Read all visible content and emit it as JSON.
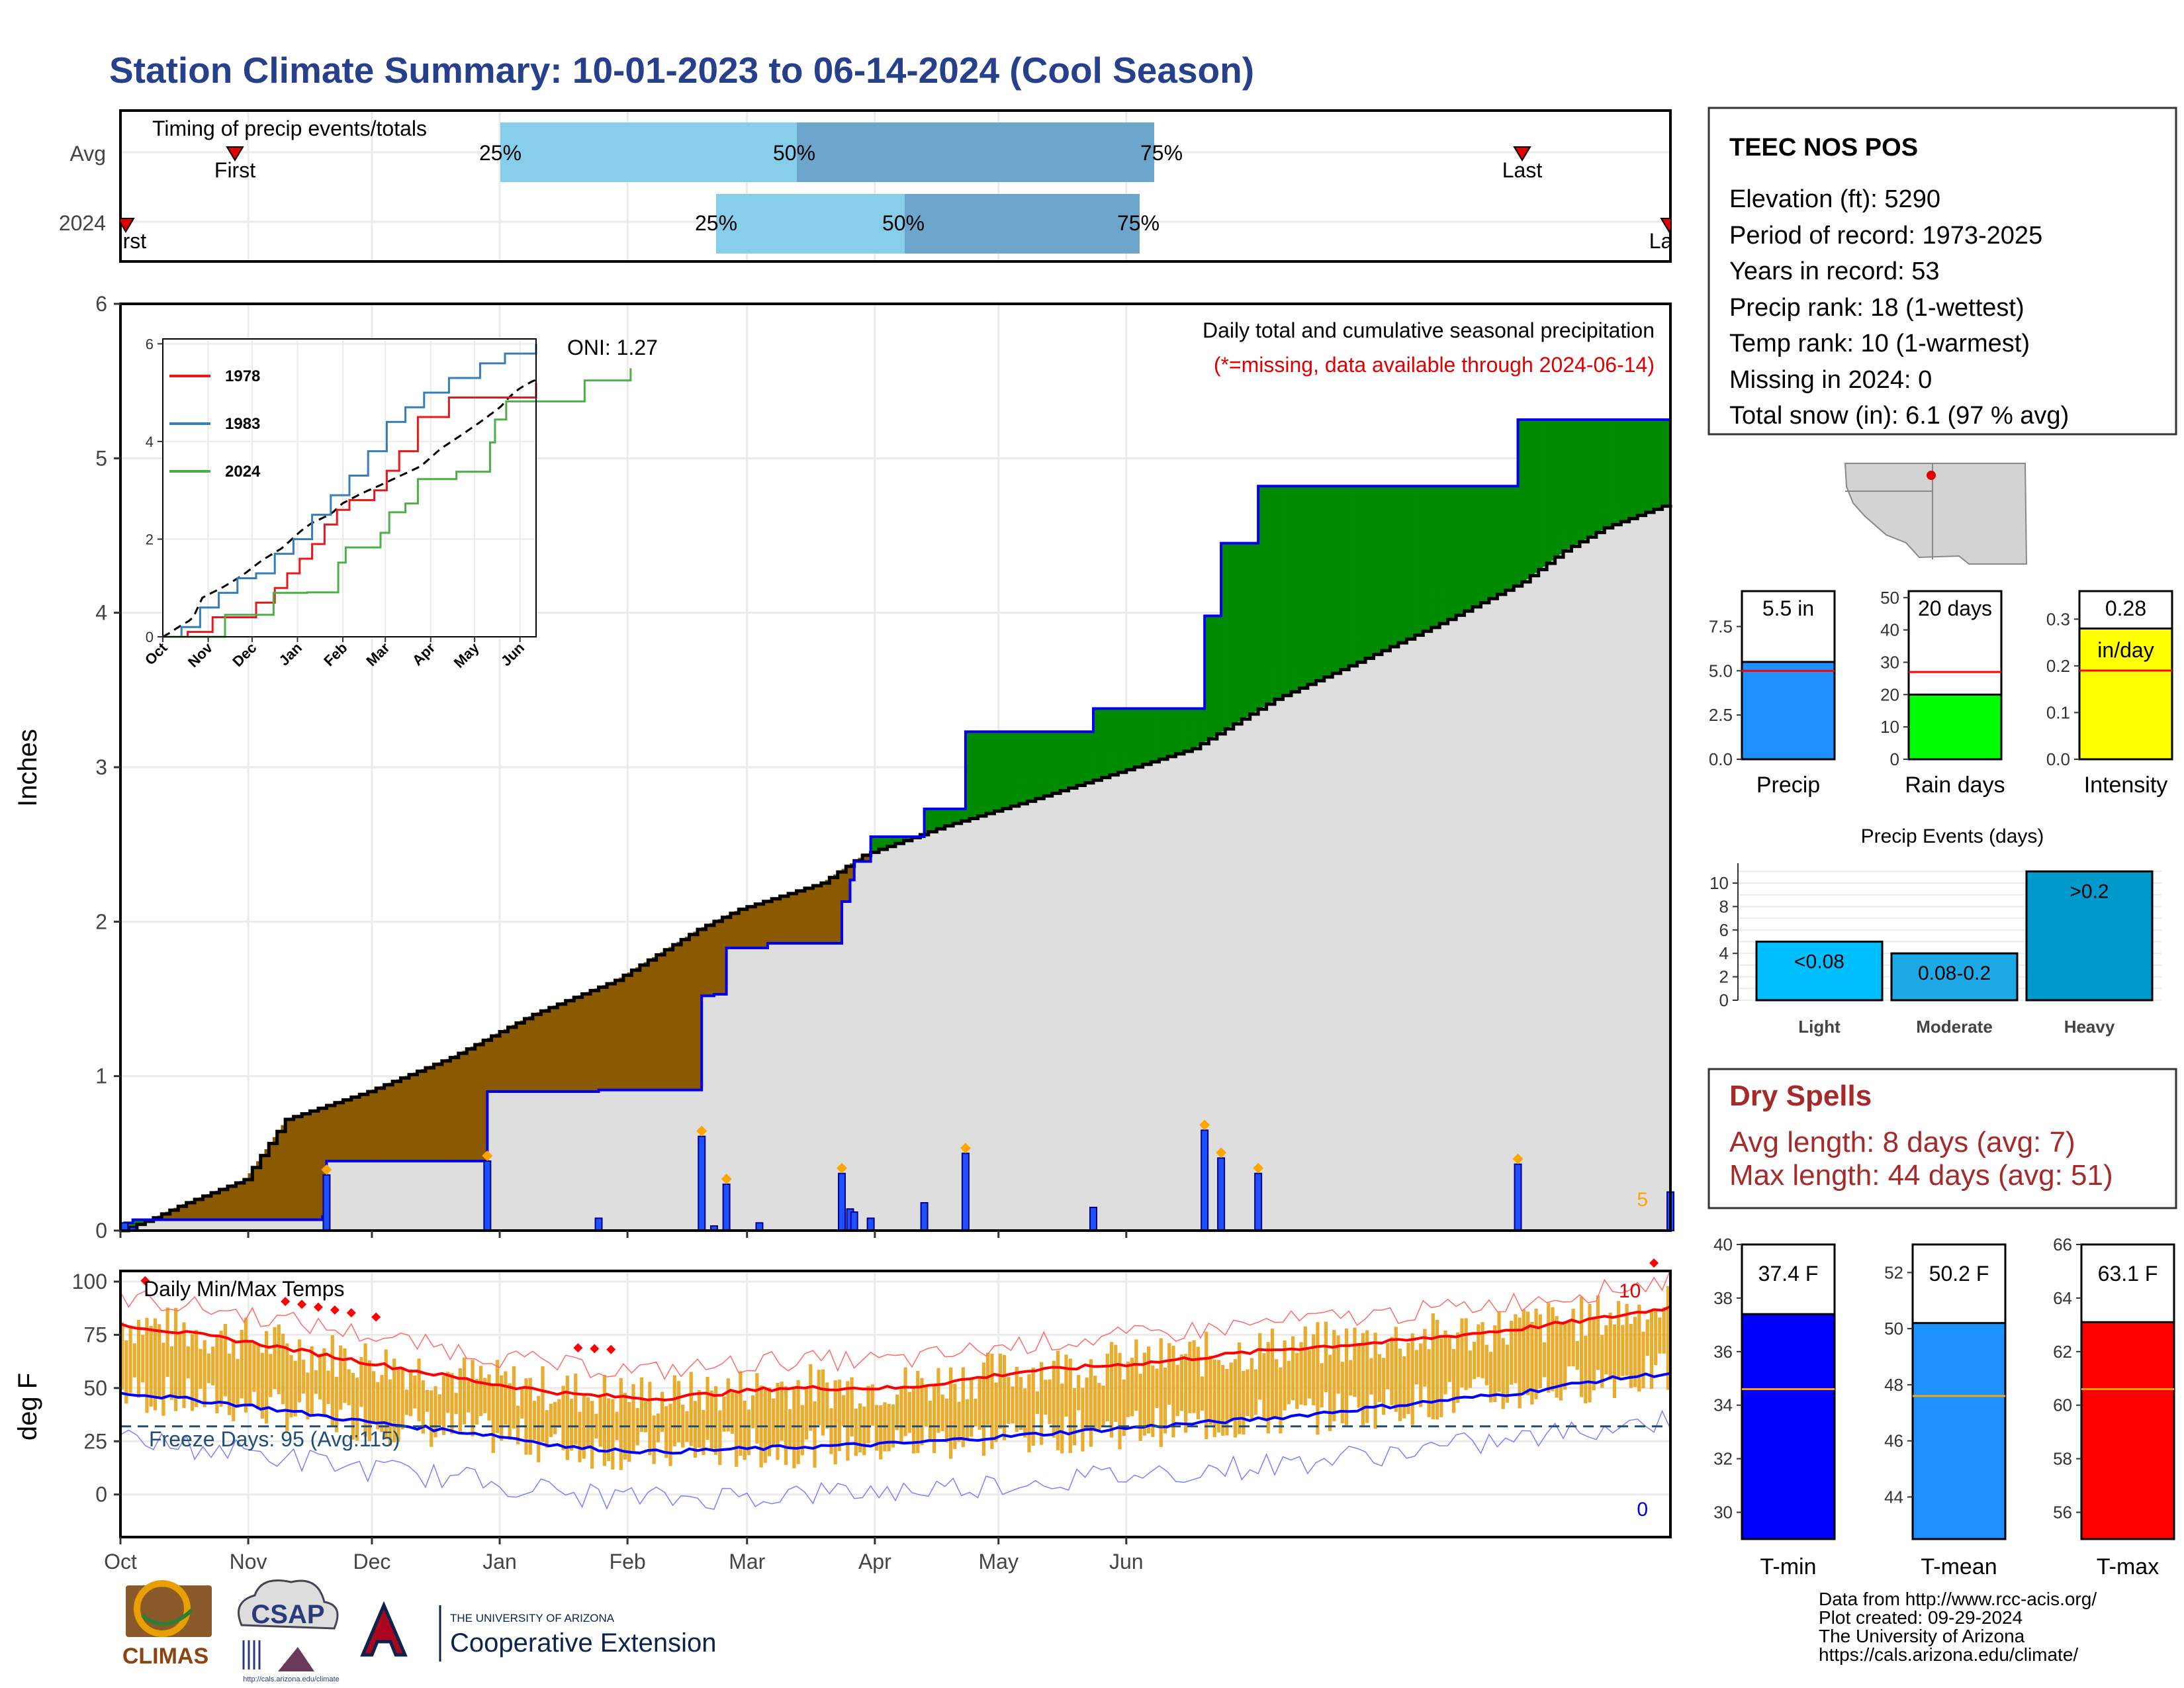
{
  "header": {
    "title": "Station Climate Summary: 10-01-2023 to 06-14-2024 (Cool Season)"
  },
  "timing": {
    "label": "Timing of precip events/totals",
    "rows": [
      "Avg",
      "2024"
    ],
    "avg": {
      "q25": 25,
      "q50": 50,
      "q75": 75,
      "first": "First",
      "last": "Last"
    },
    "y2024": {
      "q25": 25,
      "q50": 50,
      "q75": 75,
      "first": "First",
      "last": "Last"
    },
    "quartile_labels": [
      "25%",
      "50%",
      "75%"
    ]
  },
  "station": {
    "name": "TEEC NOS POS",
    "lines": [
      "Elevation (ft): 5290",
      "Period of record: 1973-2025",
      "Years in record: 53",
      "Precip rank: 18 (1-wettest)",
      "Temp rank: 10 (1-warmest)",
      "Missing in 2024: 0",
      "Total snow (in): 6.1 (97 % avg)"
    ]
  },
  "precip_panel": {
    "ylabel": "Inches",
    "title": "Daily total and cumulative seasonal precipitation",
    "subtitle": "(*=missing, data available through 2024-06-14)",
    "oni": "ONI: 1.27",
    "corner_count": "5",
    "y_ticks": [
      "0",
      "1",
      "2",
      "3",
      "4",
      "5",
      "6"
    ]
  },
  "months": [
    "Oct",
    "Nov",
    "Dec",
    "Jan",
    "Feb",
    "Mar",
    "Apr",
    "May",
    "Jun"
  ],
  "inset": {
    "y_ticks": [
      "0",
      "2",
      "4",
      "6"
    ],
    "legend": [
      {
        "name": "1978",
        "color": "#e41a1c"
      },
      {
        "name": "1983",
        "color": "#377eb8"
      },
      {
        "name": "2024",
        "color": "#4daf4a"
      }
    ]
  },
  "temp_panel": {
    "ylabel": "deg F",
    "title": "Daily Min/Max Temps",
    "freeze_label": "Freeze Days: 95 (Avg:115)",
    "hot_count": "10",
    "cold_count": "0",
    "y_ticks": [
      "0",
      "25",
      "50",
      "75",
      "100"
    ]
  },
  "small_bars": [
    {
      "label": "Precip",
      "value_label": "5.5 in",
      "value": 5.5,
      "avg": 5.0,
      "ymax": 9.5,
      "ticks": [
        "0.0",
        "2.5",
        "5.0",
        "7.5"
      ],
      "tickvals": [
        0,
        2.5,
        5.0,
        7.5
      ],
      "color": "#1e90ff"
    },
    {
      "label": "Rain days",
      "value_label": "20 days",
      "value": 20,
      "avg": 27,
      "ymax": 52,
      "ticks": [
        "0",
        "10",
        "20",
        "30",
        "40",
        "50"
      ],
      "tickvals": [
        0,
        10,
        20,
        30,
        40,
        50
      ],
      "color": "#00ff00"
    },
    {
      "label": "Intensity",
      "value_label": "0.28",
      "sub_label": "in/day",
      "value": 0.28,
      "avg": 0.19,
      "ymax": 0.36,
      "ticks": [
        "0.0",
        "0.1",
        "0.2",
        "0.3"
      ],
      "tickvals": [
        0,
        0.1,
        0.2,
        0.3
      ],
      "color": "#ffff00"
    }
  ],
  "events": {
    "title": "Precip Events (days)",
    "y_ticks": [
      "0",
      "2",
      "4",
      "6",
      "8",
      "10"
    ],
    "bars": [
      {
        "category": "Light",
        "label": "<0.08",
        "value": 5
      },
      {
        "category": "Moderate",
        "label": "0.08-0.2",
        "value": 4
      },
      {
        "category": "Heavy",
        "label": ">0.2",
        "value": 11
      }
    ]
  },
  "dry_spells": {
    "title": "Dry Spells",
    "lines": [
      "Avg length: 8 days (avg: 7)",
      "Max length: 44 days (avg: 51)"
    ]
  },
  "temp_bars": [
    {
      "label": "T-min",
      "value_label": "37.4 F",
      "value": 37.4,
      "avg": 34.6,
      "ymin": 29,
      "ymax": 40,
      "ticks": [
        "30",
        "32",
        "34",
        "36",
        "38",
        "40"
      ],
      "tickvals": [
        30,
        32,
        34,
        36,
        38,
        40
      ],
      "color": "#0000ff"
    },
    {
      "label": "T-mean",
      "value_label": "50.2 F",
      "value": 50.2,
      "avg": 47.6,
      "ymin": 42.5,
      "ymax": 53,
      "ticks": [
        "44",
        "46",
        "48",
        "50",
        "52"
      ],
      "tickvals": [
        44,
        46,
        48,
        50,
        52
      ],
      "color": "#1e90ff"
    },
    {
      "label": "T-max",
      "value_label": "63.1 F",
      "value": 63.1,
      "avg": 60.6,
      "ymin": 55,
      "ymax": 66,
      "ticks": [
        "56",
        "58",
        "60",
        "62",
        "64",
        "66"
      ],
      "tickvals": [
        56,
        58,
        60,
        62,
        64,
        66
      ],
      "color": "#ff0000"
    }
  ],
  "footer": {
    "lines": [
      "Data from http://www.rcc-acis.org/",
      "Plot created: 09-29-2024",
      "The University of Arizona",
      "https://cals.arizona.edu/climate/"
    ],
    "logos": {
      "climas": "CLIMAS",
      "csap": "CSAP",
      "uofa_small": "THE UNIVERSITY OF ARIZONA",
      "coop": "Cooperative Extension",
      "csap_url": "http://cals.arizona.edu/climate"
    }
  },
  "chart_data": {
    "type": "area",
    "title": "Daily total and cumulative seasonal precipitation",
    "ylabel": "Inches",
    "ylim": [
      0,
      6
    ],
    "x_start": "2023-10-01",
    "x_end": "2024-06-14",
    "cumulative_2024": [
      [
        0,
        0
      ],
      [
        1,
        0.05
      ],
      [
        3,
        0.07
      ],
      [
        49,
        0.09
      ],
      [
        50,
        0.45
      ],
      [
        88,
        0.45
      ],
      [
        89,
        0.9
      ],
      [
        115,
        0.9
      ],
      [
        116,
        0.91
      ],
      [
        140,
        0.91
      ],
      [
        141,
        1.52
      ],
      [
        144,
        1.53
      ],
      [
        147,
        1.83
      ],
      [
        155,
        1.83
      ],
      [
        157,
        1.86
      ],
      [
        174,
        1.86
      ],
      [
        175,
        2.13
      ],
      [
        177,
        2.27
      ],
      [
        178,
        2.39
      ],
      [
        182,
        2.55
      ],
      [
        194,
        2.55
      ],
      [
        195,
        2.73
      ],
      [
        204,
        2.73
      ],
      [
        205,
        3.23
      ],
      [
        235,
        3.23
      ],
      [
        236,
        3.38
      ],
      [
        262,
        3.38
      ],
      [
        263,
        3.98
      ],
      [
        267,
        4.45
      ],
      [
        276,
        4.82
      ],
      [
        338,
        4.82
      ],
      [
        339,
        5.25
      ],
      [
        375,
        5.25
      ],
      [
        376,
        5.5
      ]
    ],
    "cumulative_avg": [
      [
        0,
        0
      ],
      [
        7,
        0.07
      ],
      [
        15,
        0.17
      ],
      [
        30,
        0.33
      ],
      [
        40,
        0.72
      ],
      [
        60,
        0.9
      ],
      [
        80,
        1.12
      ],
      [
        100,
        1.4
      ],
      [
        120,
        1.62
      ],
      [
        140,
        1.95
      ],
      [
        150,
        2.08
      ],
      [
        170,
        2.25
      ],
      [
        180,
        2.43
      ],
      [
        200,
        2.62
      ],
      [
        220,
        2.78
      ],
      [
        240,
        2.95
      ],
      [
        260,
        3.12
      ],
      [
        280,
        3.44
      ],
      [
        300,
        3.68
      ],
      [
        320,
        3.93
      ],
      [
        340,
        4.2
      ],
      [
        350,
        4.4
      ],
      [
        360,
        4.55
      ],
      [
        375,
        4.7
      ]
    ],
    "daily_2024": [
      [
        1,
        0.05
      ],
      [
        3,
        0.02
      ],
      [
        50,
        0.36
      ],
      [
        89,
        0.45
      ],
      [
        116,
        0.08
      ],
      [
        141,
        0.61
      ],
      [
        144,
        0.03
      ],
      [
        147,
        0.3
      ],
      [
        155,
        0.05
      ],
      [
        175,
        0.37
      ],
      [
        177,
        0.14
      ],
      [
        178,
        0.12
      ],
      [
        182,
        0.08
      ],
      [
        195,
        0.18
      ],
      [
        205,
        0.5
      ],
      [
        236,
        0.15
      ],
      [
        263,
        0.65
      ],
      [
        267,
        0.47
      ],
      [
        276,
        0.37
      ],
      [
        339,
        0.43
      ],
      [
        376,
        0.25
      ]
    ],
    "inset_series": [
      {
        "name": "1978",
        "points": [
          [
            0,
            0
          ],
          [
            20,
            0.1
          ],
          [
            40,
            0.4
          ],
          [
            60,
            0.4
          ],
          [
            75,
            0.7
          ],
          [
            90,
            1.0
          ],
          [
            100,
            1.3
          ],
          [
            110,
            1.6
          ],
          [
            120,
            1.9
          ],
          [
            130,
            2.3
          ],
          [
            140,
            2.6
          ],
          [
            150,
            2.8
          ],
          [
            170,
            3.0
          ],
          [
            180,
            3.4
          ],
          [
            190,
            3.8
          ],
          [
            205,
            4.5
          ],
          [
            230,
            4.9
          ],
          [
            265,
            4.9
          ],
          [
            300,
            5.2
          ]
        ]
      },
      {
        "name": "1983",
        "points": [
          [
            0,
            0
          ],
          [
            15,
            0.2
          ],
          [
            30,
            0.6
          ],
          [
            45,
            0.9
          ],
          [
            60,
            1.2
          ],
          [
            75,
            1.3
          ],
          [
            90,
            1.7
          ],
          [
            105,
            2.0
          ],
          [
            120,
            2.5
          ],
          [
            135,
            2.9
          ],
          [
            150,
            3.3
          ],
          [
            165,
            3.8
          ],
          [
            180,
            4.4
          ],
          [
            195,
            4.7
          ],
          [
            210,
            5.0
          ],
          [
            230,
            5.3
          ],
          [
            255,
            5.6
          ],
          [
            275,
            5.8
          ],
          [
            300,
            6.0
          ]
        ]
      },
      {
        "name": "2024",
        "points": [
          [
            0,
            0
          ],
          [
            50,
            0.45
          ],
          [
            89,
            0.9
          ],
          [
            116,
            0.91
          ],
          [
            141,
            1.52
          ],
          [
            147,
            1.83
          ],
          [
            175,
            2.13
          ],
          [
            182,
            2.55
          ],
          [
            195,
            2.73
          ],
          [
            205,
            3.23
          ],
          [
            236,
            3.38
          ],
          [
            263,
            3.98
          ],
          [
            267,
            4.45
          ],
          [
            276,
            4.82
          ],
          [
            300,
            4.82
          ],
          [
            338,
            4.82
          ],
          [
            339,
            5.25
          ],
          [
            376,
            5.5
          ]
        ]
      }
    ],
    "temp_ylim": [
      -20,
      105
    ],
    "freeze_line": 32,
    "avg_max": [
      [
        0,
        80
      ],
      [
        30,
        72
      ],
      [
        60,
        62
      ],
      [
        90,
        52
      ],
      [
        110,
        47
      ],
      [
        130,
        45
      ],
      [
        160,
        50
      ],
      [
        190,
        50
      ],
      [
        220,
        58
      ],
      [
        250,
        62
      ],
      [
        280,
        68
      ],
      [
        310,
        72
      ],
      [
        340,
        78
      ],
      [
        360,
        83
      ],
      [
        376,
        88
      ]
    ],
    "avg_min": [
      [
        0,
        48
      ],
      [
        30,
        42
      ],
      [
        60,
        34
      ],
      [
        90,
        28
      ],
      [
        110,
        22
      ],
      [
        130,
        20
      ],
      [
        160,
        22
      ],
      [
        190,
        24
      ],
      [
        220,
        28
      ],
      [
        250,
        32
      ],
      [
        280,
        36
      ],
      [
        310,
        42
      ],
      [
        340,
        48
      ],
      [
        360,
        54
      ],
      [
        376,
        57
      ]
    ]
  }
}
